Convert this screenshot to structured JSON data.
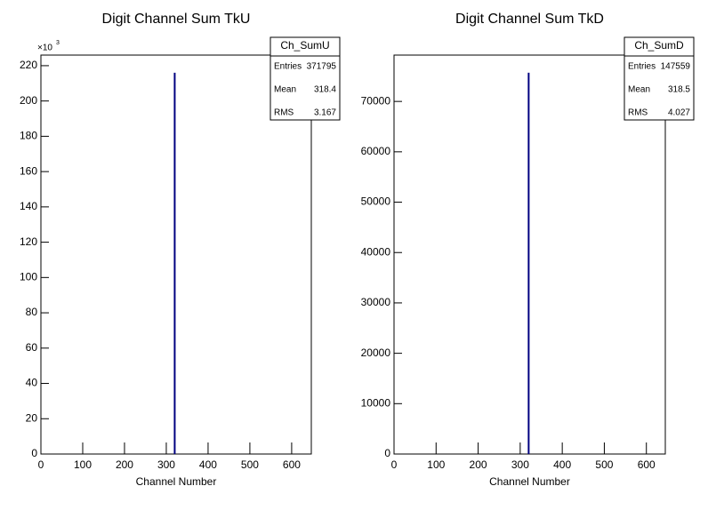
{
  "chart_data": [
    {
      "type": "histogram",
      "title": "Digit Channel Sum TkU",
      "xlabel": "Channel Number",
      "bins": [
        318,
        319
      ],
      "counts": [
        216
      ],
      "color": "#000080",
      "xlim": [
        0,
        647
      ],
      "ylim": [
        0,
        226
      ],
      "xticks": [
        0,
        100,
        200,
        300,
        400,
        500,
        600
      ],
      "yticks": [
        0,
        20,
        40,
        60,
        80,
        100,
        120,
        140,
        160,
        180,
        200,
        220
      ],
      "ymultiplier": {
        "base": "×10",
        "exponent": "3"
      },
      "stats": {
        "title": "Ch_SumU",
        "labels": [
          "Entries",
          "Mean",
          "RMS"
        ],
        "values": [
          371795,
          318.4,
          3.167
        ]
      }
    },
    {
      "type": "histogram",
      "title": "Digit Channel Sum TkD",
      "xlabel": "Channel Number",
      "bins": [
        318,
        319
      ],
      "counts": [
        75700
      ],
      "color": "#000080",
      "xlim": [
        0,
        645
      ],
      "ylim": [
        0,
        79200
      ],
      "xticks": [
        0,
        100,
        200,
        300,
        400,
        500,
        600
      ],
      "yticks": [
        0,
        10000,
        20000,
        30000,
        40000,
        50000,
        60000,
        70000
      ],
      "stats": {
        "title": "Ch_SumD",
        "labels": [
          "Entries",
          "Mean",
          "RMS"
        ],
        "values": [
          147559,
          318.5,
          4.027
        ]
      }
    }
  ]
}
